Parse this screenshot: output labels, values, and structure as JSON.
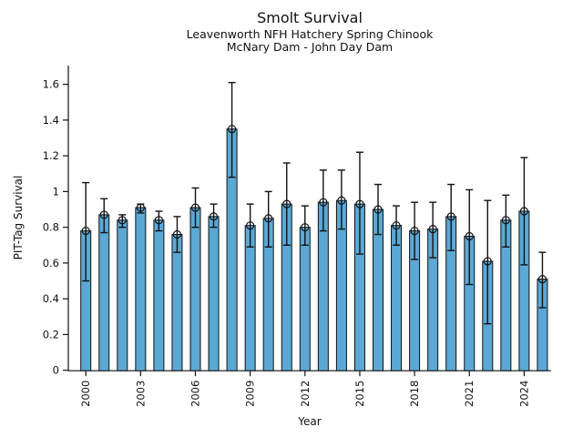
{
  "chart_data": {
    "type": "bar",
    "title": "Smolt Survival",
    "subtitle1": "Leavenworth NFH Hatchery Spring Chinook",
    "subtitle2": "McNary Dam - John Day Dam",
    "xlabel": "Year",
    "ylabel": "PIT-Tag Survival",
    "categories": [
      2000,
      2001,
      2002,
      2003,
      2004,
      2005,
      2006,
      2007,
      2008,
      2009,
      2010,
      2011,
      2012,
      2013,
      2014,
      2015,
      2016,
      2017,
      2018,
      2019,
      2020,
      2021,
      2022,
      2023,
      2024,
      2025
    ],
    "values": [
      0.78,
      0.87,
      0.84,
      0.91,
      0.84,
      0.76,
      0.91,
      0.86,
      1.35,
      0.81,
      0.85,
      0.93,
      0.8,
      0.94,
      0.95,
      0.93,
      0.9,
      0.81,
      0.78,
      0.79,
      0.86,
      0.75,
      0.61,
      0.84,
      0.89,
      0.51
    ],
    "error_low": [
      0.5,
      0.77,
      0.8,
      0.88,
      0.78,
      0.66,
      0.8,
      0.8,
      1.08,
      0.69,
      0.69,
      0.7,
      0.7,
      0.78,
      0.79,
      0.65,
      0.76,
      0.7,
      0.62,
      0.63,
      0.67,
      0.48,
      0.26,
      0.69,
      0.59,
      0.35
    ],
    "error_high": [
      1.05,
      0.96,
      0.87,
      0.93,
      0.89,
      0.86,
      1.02,
      0.93,
      1.61,
      0.93,
      1.0,
      1.16,
      0.92,
      1.12,
      1.12,
      1.22,
      1.04,
      0.92,
      0.94,
      0.94,
      1.04,
      1.01,
      0.95,
      0.98,
      1.19,
      0.66
    ],
    "ylim": [
      0,
      1.7
    ],
    "yticks": [
      0,
      0.2,
      0.4,
      0.6,
      0.8,
      1.0,
      1.2,
      1.4,
      1.6
    ],
    "ytick_labels": [
      "0",
      "0.2",
      "0.4",
      "0.6",
      "0.8",
      "1",
      "1.2",
      "1.4",
      "1.6"
    ],
    "xticks": [
      2000,
      2003,
      2006,
      2009,
      2012,
      2015,
      2018,
      2021,
      2024
    ],
    "grid": false,
    "legend": "none",
    "marker": "open-circle",
    "bar_color": "#5BA8D5",
    "bar_edge_color": "#111111",
    "error_color": "#111111",
    "axis_color": "#111111"
  }
}
